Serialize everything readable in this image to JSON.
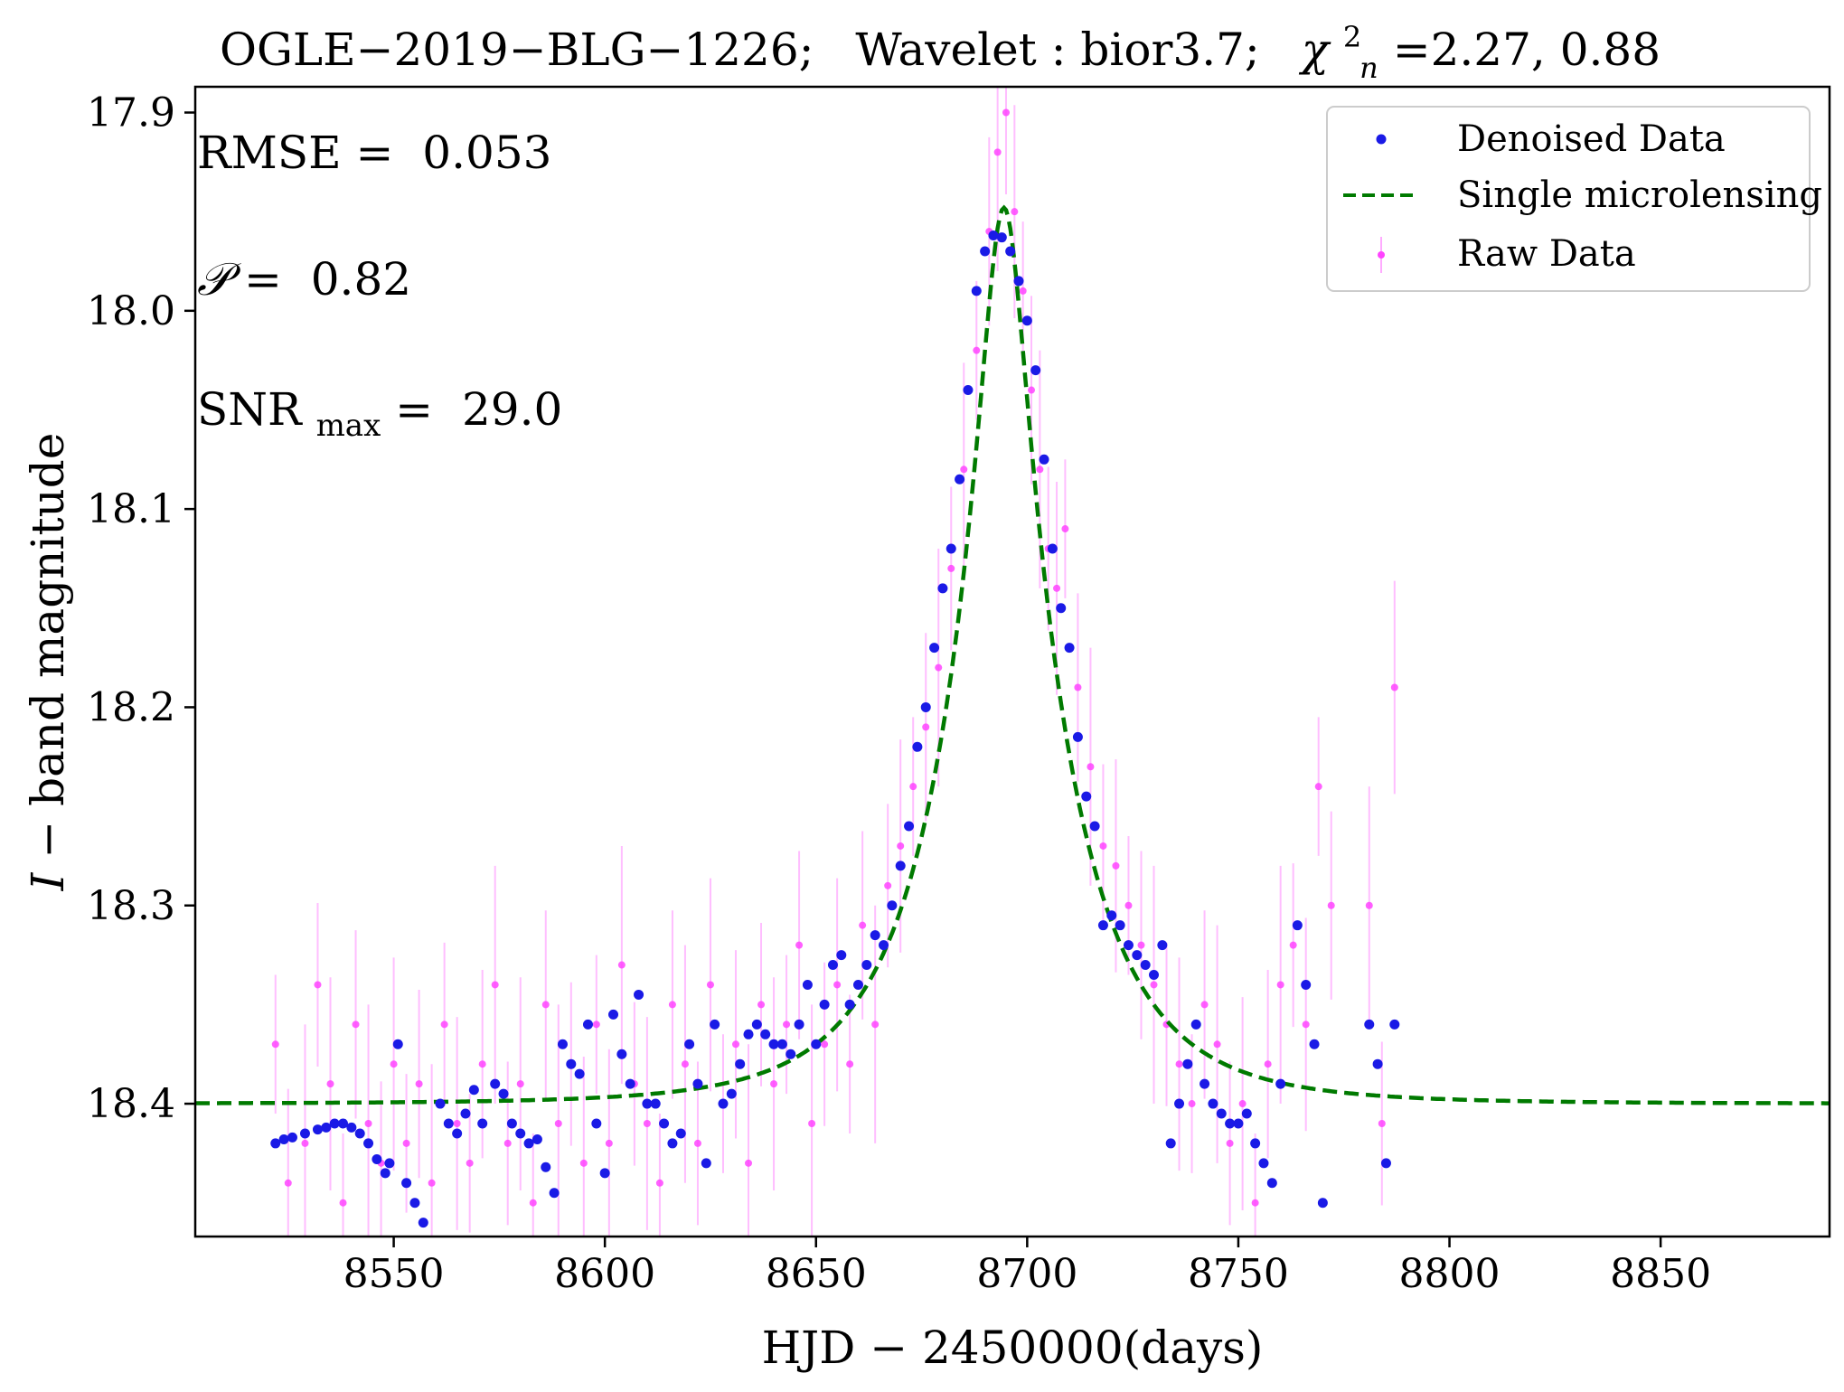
{
  "chart_data": {
    "type": "scatter",
    "title": "OGLE−2019−BLG−1226;    Wavelet :  bior3.7;    χ²ₙ =2.27,  0.88",
    "title_parts": {
      "event": "OGLE−2019−BLG−1226;",
      "wavelet": "Wavelet :  bior3.7;",
      "chi_symbol": "χ",
      "chi_sup": "2",
      "chi_sub": "n",
      "chi_values": " =2.27,  0.88"
    },
    "xlabel": "HJD − 2450000(days)",
    "ylabel_italic": "I",
    "ylabel_rest": " − band magnitude",
    "xlim": [
      8503,
      8890
    ],
    "ylim": [
      18.467,
      17.887
    ],
    "y_inverted": true,
    "x_ticks": [
      8550,
      8600,
      8650,
      8700,
      8750,
      8800,
      8850
    ],
    "y_ticks": [
      17.9,
      18.0,
      18.1,
      18.2,
      18.3,
      18.4
    ],
    "y_tick_labels": [
      "17.9",
      "18.0",
      "18.1",
      "18.2",
      "18.3",
      "18.4"
    ],
    "legend": {
      "position": "top-right",
      "entries": [
        {
          "label": "Denoised Data",
          "color": "#1a1ae6",
          "marker": "dot"
        },
        {
          "label": "Single microlensing",
          "color": "#007a00",
          "marker": "dashed-line"
        },
        {
          "label": "Raw Data",
          "color": "#ff44ff",
          "marker": "dot-errorbar"
        }
      ]
    },
    "annotations": {
      "rmse_label": "RMSE =",
      "rmse_value": "0.053",
      "p_label": "𝒫 =",
      "p_value": "0.82",
      "snr_label": "SNR",
      "snr_sub": "max",
      "snr_eq": " =",
      "snr_value": "29.0"
    },
    "model": {
      "name": "Single microlensing",
      "t0": 8694.5,
      "tE": 29,
      "u0": 0.175,
      "m_base": 18.4,
      "m_peak": 17.948,
      "color": "#007a00"
    },
    "series": [
      {
        "name": "Denoised Data",
        "color": "#1a1ae6",
        "x": [
          8522,
          8524,
          8526,
          8529,
          8532,
          8534,
          8536,
          8538,
          8540,
          8542,
          8544,
          8546,
          8548,
          8549,
          8551,
          8553,
          8555,
          8557,
          8559,
          8561,
          8563,
          8565,
          8567,
          8569,
          8571,
          8574,
          8576,
          8578,
          8580,
          8582,
          8584,
          8586,
          8588,
          8590,
          8592,
          8594,
          8596,
          8598,
          8600,
          8602,
          8604,
          8606,
          8608,
          8610,
          8612,
          8614,
          8616,
          8618,
          8620,
          8622,
          8624,
          8626,
          8628,
          8630,
          8632,
          8634,
          8636,
          8638,
          8640,
          8642,
          8644,
          8646,
          8648,
          8650,
          8652,
          8654,
          8656,
          8658,
          8660,
          8662,
          8664,
          8666,
          8668,
          8670,
          8672,
          8674,
          8676,
          8678,
          8680,
          8682,
          8684,
          8686,
          8688,
          8690,
          8692,
          8694,
          8696,
          8698,
          8700,
          8702,
          8704,
          8706,
          8708,
          8710,
          8712,
          8714,
          8716,
          8718,
          8720,
          8722,
          8724,
          8726,
          8728,
          8730,
          8732,
          8734,
          8736,
          8738,
          8740,
          8742,
          8744,
          8746,
          8748,
          8750,
          8752,
          8754,
          8756,
          8758,
          8760,
          8764,
          8766,
          8768,
          8770,
          8781,
          8783,
          8785,
          8787
        ],
        "y": [
          18.42,
          18.418,
          18.417,
          18.415,
          18.413,
          18.412,
          18.41,
          18.41,
          18.412,
          18.415,
          18.42,
          18.428,
          18.435,
          18.43,
          18.37,
          18.44,
          18.45,
          18.46,
          18.47,
          18.4,
          18.41,
          18.415,
          18.405,
          18.393,
          18.41,
          18.39,
          18.395,
          18.41,
          18.415,
          18.42,
          18.418,
          18.432,
          18.445,
          18.37,
          18.38,
          18.385,
          18.36,
          18.41,
          18.435,
          18.355,
          18.375,
          18.39,
          18.345,
          18.4,
          18.4,
          18.41,
          18.42,
          18.415,
          18.37,
          18.39,
          18.43,
          18.36,
          18.4,
          18.395,
          18.38,
          18.365,
          18.36,
          18.365,
          18.37,
          18.37,
          18.375,
          18.36,
          18.34,
          18.37,
          18.35,
          18.33,
          18.325,
          18.35,
          18.34,
          18.33,
          18.315,
          18.32,
          18.3,
          18.28,
          18.26,
          18.22,
          18.2,
          18.17,
          18.14,
          18.12,
          18.085,
          18.04,
          17.99,
          17.97,
          17.962,
          17.963,
          17.97,
          17.985,
          18.005,
          18.03,
          18.075,
          18.12,
          18.15,
          18.17,
          18.215,
          18.245,
          18.26,
          18.31,
          18.305,
          18.31,
          18.32,
          18.325,
          18.33,
          18.335,
          18.32,
          18.42,
          18.4,
          18.38,
          18.36,
          18.39,
          18.4,
          18.405,
          18.41,
          18.41,
          18.405,
          18.42,
          18.43,
          18.44,
          18.39,
          18.31,
          18.34,
          18.37,
          18.45,
          18.36,
          18.38,
          18.43,
          18.36
        ]
      },
      {
        "name": "Raw Data",
        "color": "#ff44ff",
        "x": [
          8522,
          8525,
          8529,
          8532,
          8535,
          8538,
          8541,
          8544,
          8547,
          8550,
          8553,
          8556,
          8559,
          8562,
          8565,
          8568,
          8571,
          8574,
          8577,
          8580,
          8583,
          8586,
          8589,
          8592,
          8595,
          8598,
          8601,
          8604,
          8607,
          8610,
          8613,
          8616,
          8619,
          8622,
          8625,
          8628,
          8631,
          8634,
          8637,
          8640,
          8643,
          8646,
          8649,
          8652,
          8655,
          8658,
          8661,
          8664,
          8667,
          8670,
          8673,
          8676,
          8679,
          8682,
          8685,
          8688,
          8691,
          8693,
          8695,
          8697,
          8699,
          8701,
          8703,
          8705,
          8707,
          8709,
          8712,
          8715,
          8718,
          8721,
          8724,
          8727,
          8730,
          8733,
          8736,
          8739,
          8742,
          8745,
          8748,
          8751,
          8754,
          8757,
          8760,
          8763,
          8766,
          8769,
          8772,
          8781,
          8784,
          8787
        ],
        "y": [
          18.37,
          18.44,
          18.42,
          18.34,
          18.39,
          18.45,
          18.36,
          18.41,
          18.43,
          18.38,
          18.42,
          18.39,
          18.44,
          18.36,
          18.41,
          18.43,
          18.38,
          18.34,
          18.42,
          18.39,
          18.45,
          18.35,
          18.41,
          18.38,
          18.43,
          18.36,
          18.42,
          18.33,
          18.39,
          18.41,
          18.44,
          18.35,
          18.38,
          18.42,
          18.34,
          18.4,
          18.37,
          18.43,
          18.35,
          18.39,
          18.36,
          18.32,
          18.41,
          18.37,
          18.34,
          18.38,
          18.31,
          18.36,
          18.29,
          18.27,
          18.24,
          18.21,
          18.18,
          18.13,
          18.08,
          18.02,
          17.96,
          17.92,
          17.9,
          17.95,
          17.99,
          18.04,
          18.08,
          18.12,
          18.14,
          18.11,
          18.19,
          18.23,
          18.27,
          18.28,
          18.3,
          18.32,
          18.34,
          18.36,
          18.38,
          18.4,
          18.35,
          18.37,
          18.42,
          18.4,
          18.45,
          18.38,
          18.34,
          18.32,
          18.36,
          18.24,
          18.3,
          18.3,
          18.41,
          18.19
        ]
      }
    ]
  }
}
